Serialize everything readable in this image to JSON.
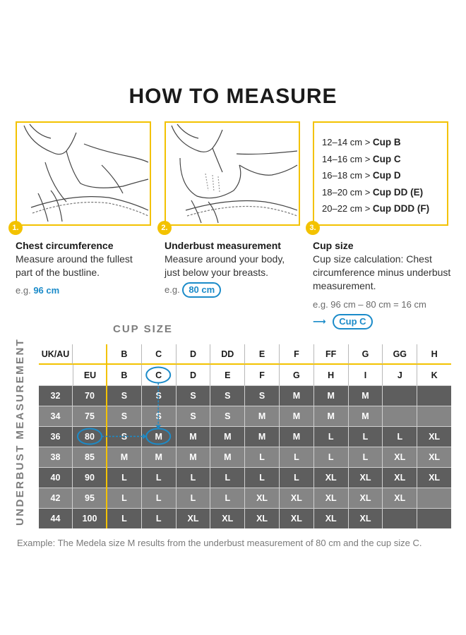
{
  "title": "HOW TO MEASURE",
  "steps": [
    {
      "num": "1.",
      "heading": "Chest circumference",
      "body1": "Measure around the fullest",
      "body2": "part of the bustline.",
      "example_prefix": "e.g.",
      "example_value": "96 cm"
    },
    {
      "num": "2.",
      "heading": "Underbust measurement",
      "body1": "Measure around your body,",
      "body2": "just below your breasts.",
      "example_prefix": "e.g.",
      "example_value": "80 cm"
    },
    {
      "num": "3.",
      "heading": "Cup size",
      "body1": "Cup size calculation: Chest",
      "body2": "circumference minus underbust",
      "body3": "measurement.",
      "example": "e.g. 96 cm – 80 cm = 16 cm",
      "result": "Cup C"
    }
  ],
  "cup_ranges": [
    {
      "range": "12–14 cm >",
      "cup": "Cup B"
    },
    {
      "range": "14–16 cm >",
      "cup": "Cup C"
    },
    {
      "range": "16–18 cm >",
      "cup": "Cup D"
    },
    {
      "range": "18–20 cm >",
      "cup": "Cup DD (E)"
    },
    {
      "range": "20–22 cm >",
      "cup": "Cup DDD (F)"
    }
  ],
  "chart": {
    "cup_size_label": "CUP SIZE",
    "side_label": "UNDERBUST MEASUREMENT",
    "uk_header": "UK/AU",
    "eu_header": "EU",
    "uk_cups": [
      "B",
      "C",
      "D",
      "DD",
      "E",
      "F",
      "FF",
      "G",
      "GG",
      "H"
    ],
    "eu_cups": [
      "B",
      "C",
      "D",
      "E",
      "F",
      "G",
      "H",
      "I",
      "J",
      "K"
    ],
    "rows": [
      {
        "uk": "32",
        "eu": "70",
        "sizes": [
          "S",
          "S",
          "S",
          "S",
          "S",
          "M",
          "M",
          "M",
          "",
          ""
        ]
      },
      {
        "uk": "34",
        "eu": "75",
        "sizes": [
          "S",
          "S",
          "S",
          "S",
          "M",
          "M",
          "M",
          "M",
          "",
          ""
        ]
      },
      {
        "uk": "36",
        "eu": "80",
        "sizes": [
          "S",
          "M",
          "M",
          "M",
          "M",
          "M",
          "L",
          "L",
          "L",
          "XL"
        ]
      },
      {
        "uk": "38",
        "eu": "85",
        "sizes": [
          "M",
          "M",
          "M",
          "M",
          "L",
          "L",
          "L",
          "L",
          "XL",
          "XL"
        ]
      },
      {
        "uk": "40",
        "eu": "90",
        "sizes": [
          "L",
          "L",
          "L",
          "L",
          "L",
          "L",
          "XL",
          "XL",
          "XL",
          "XL"
        ]
      },
      {
        "uk": "42",
        "eu": "95",
        "sizes": [
          "L",
          "L",
          "L",
          "L",
          "XL",
          "XL",
          "XL",
          "XL",
          "XL",
          ""
        ]
      },
      {
        "uk": "44",
        "eu": "100",
        "sizes": [
          "L",
          "L",
          "XL",
          "XL",
          "XL",
          "XL",
          "XL",
          "XL",
          "",
          ""
        ]
      }
    ],
    "highlight": {
      "eu": "80",
      "cup": "C",
      "size": "M"
    }
  },
  "footnote": "Example: The Medela size M results from the underbust measurement of 80 cm and the cup size C.",
  "colors": {
    "accent_yellow": "#f3c200",
    "accent_blue": "#1b8bc9",
    "row_dark": "#5e5e5e",
    "row_light": "#858585"
  }
}
